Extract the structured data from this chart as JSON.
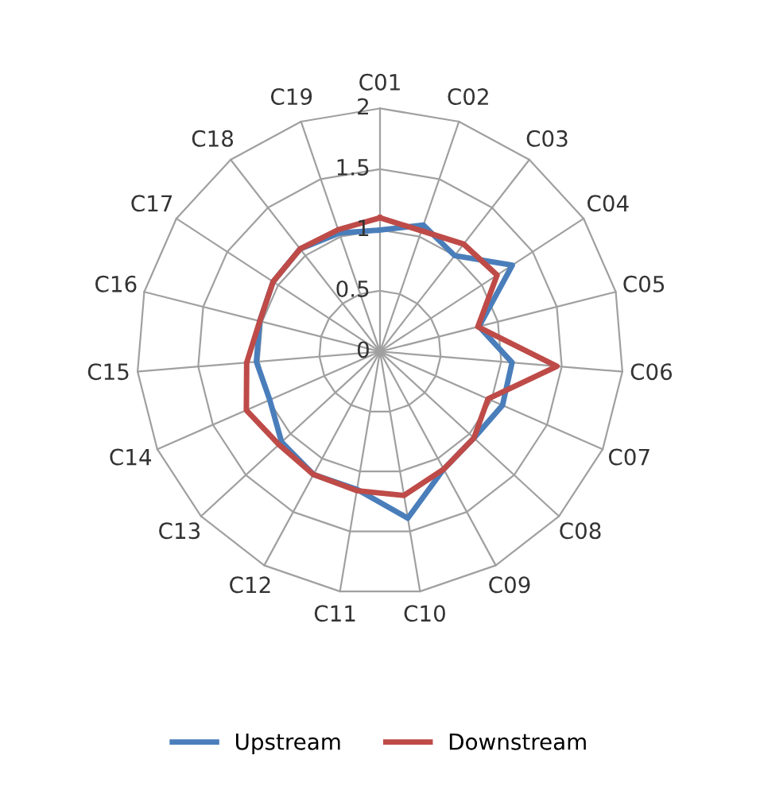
{
  "chart_data": {
    "type": "radar",
    "categories": [
      "C01",
      "C02",
      "C03",
      "C04",
      "C05",
      "C06",
      "C07",
      "C08",
      "C09",
      "C10",
      "C11",
      "C12",
      "C13",
      "C14",
      "C15",
      "C16",
      "C17",
      "C18",
      "C19"
    ],
    "ylim": [
      0,
      2
    ],
    "yticks": [
      0,
      0.5,
      1,
      1.5,
      2
    ],
    "grid": true,
    "legend": "bottom",
    "marker": "none",
    "line_style": "solid",
    "series": [
      {
        "name": "Upstream",
        "color": "#4a7ebb",
        "values": [
          1.0,
          1.1,
          1.0,
          1.3,
          0.84,
          1.09,
          1.1,
          1.05,
          1.1,
          1.39,
          1.15,
          1.15,
          1.1,
          0.99,
          1.02,
          1.02,
          1.05,
          1.07,
          1.03
        ]
      },
      {
        "name": "Downstream",
        "color": "#be4b48",
        "values": [
          1.1,
          1.05,
          1.12,
          1.15,
          0.83,
          1.46,
          0.97,
          1.05,
          1.1,
          1.2,
          1.16,
          1.15,
          1.13,
          1.2,
          1.1,
          1.02,
          1.05,
          1.07,
          1.06
        ]
      }
    ]
  }
}
